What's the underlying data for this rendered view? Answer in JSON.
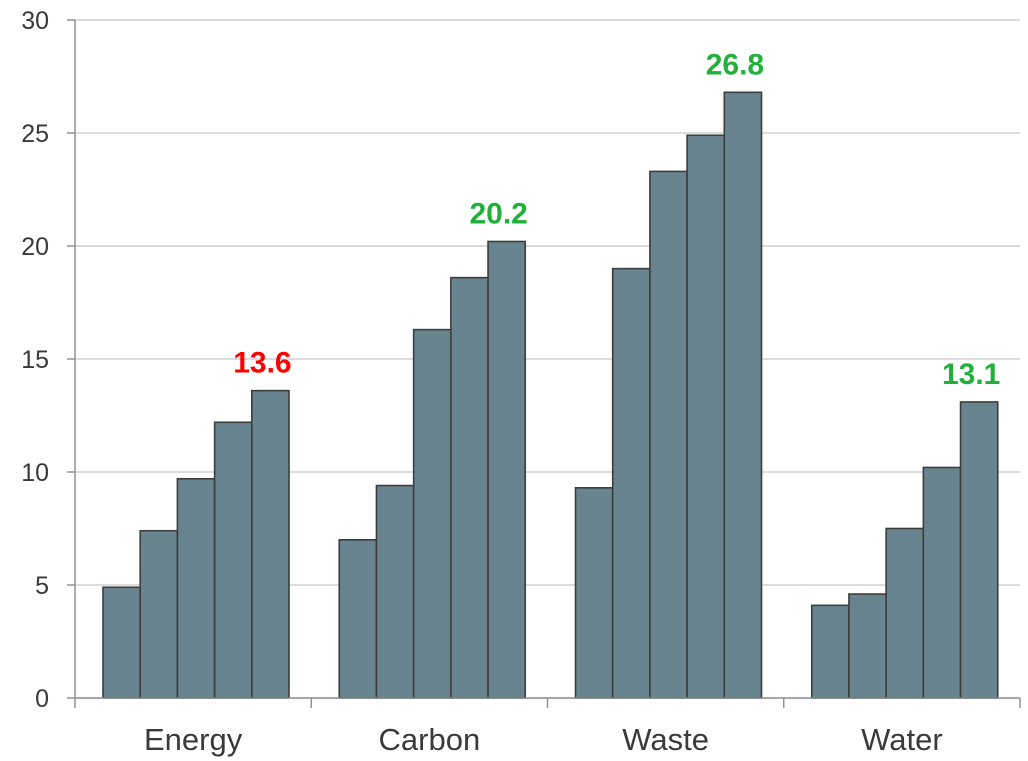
{
  "chart_data": {
    "type": "bar",
    "categories": [
      "Energy",
      "Carbon",
      "Waste",
      "Water"
    ],
    "values_per_category": [
      [
        4.9,
        7.4,
        9.7,
        12.2,
        13.6
      ],
      [
        7.0,
        9.4,
        16.3,
        18.6,
        20.2
      ],
      [
        9.3,
        19.0,
        23.3,
        24.9,
        26.8
      ],
      [
        4.1,
        4.6,
        7.5,
        10.2,
        13.1
      ]
    ],
    "data_labels": [
      {
        "category": "Energy",
        "text": "13.6",
        "color": "#ff0000"
      },
      {
        "category": "Carbon",
        "text": "20.2",
        "color": "#22b03a"
      },
      {
        "category": "Waste",
        "text": "26.8",
        "color": "#22b03a"
      },
      {
        "category": "Water",
        "text": "13.1",
        "color": "#22b03a"
      }
    ],
    "ylim": [
      0,
      30
    ],
    "yticks": [
      "0",
      "5",
      "10",
      "15",
      "20",
      "25",
      "30"
    ],
    "grid": true,
    "bar_color": "#68848f",
    "title": "",
    "xlabel": "",
    "ylabel": ""
  }
}
